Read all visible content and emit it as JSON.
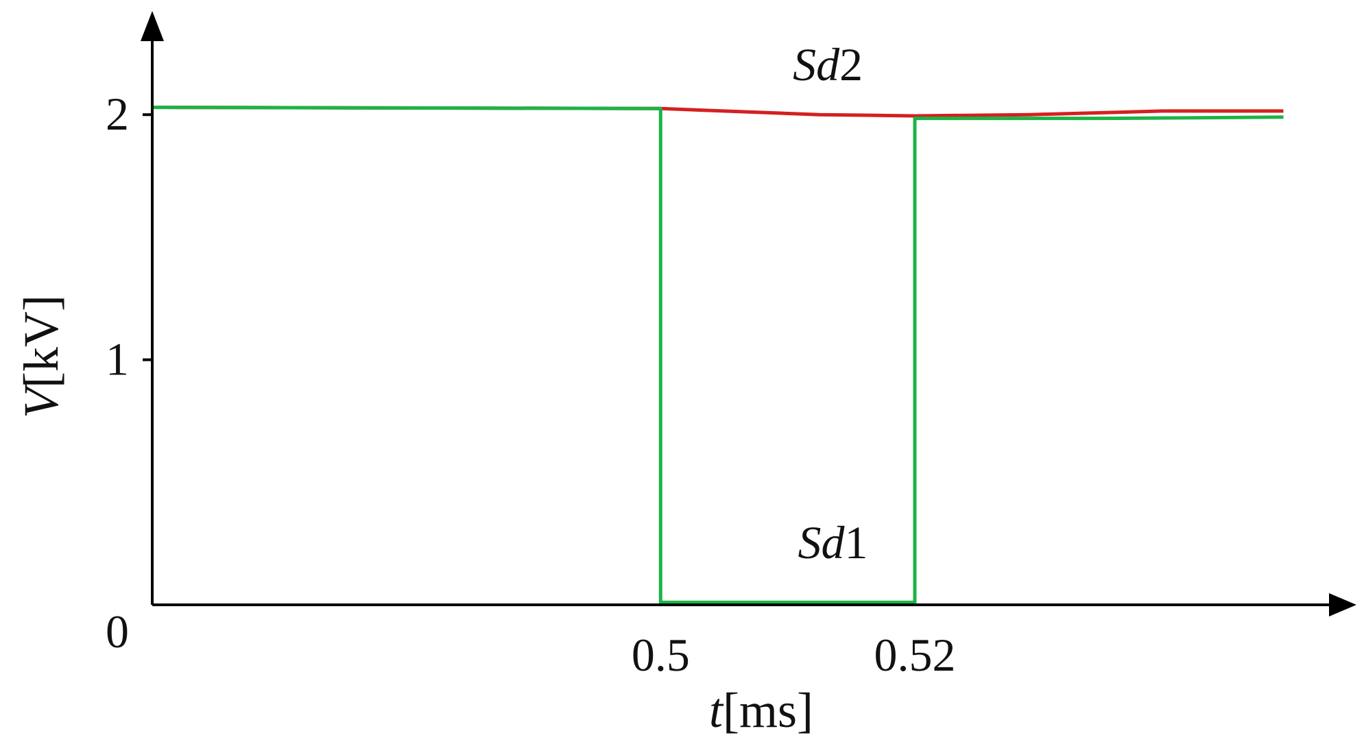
{
  "chart_data": {
    "type": "line",
    "xlabel": {
      "symbol": "t",
      "unit": "[ms]"
    },
    "ylabel": {
      "symbol": "V",
      "unit": "[kV]"
    },
    "x_ticks": [
      {
        "value": 0.5,
        "label": "0.5"
      },
      {
        "value": 0.52,
        "label": "0.52"
      }
    ],
    "y_ticks": [
      {
        "value": 0,
        "label": "0"
      },
      {
        "value": 1,
        "label": "1"
      },
      {
        "value": 2,
        "label": "2"
      }
    ],
    "xlim": [
      0.46,
      0.55
    ],
    "ylim": [
      0,
      2.3
    ],
    "grid": false,
    "legend": "none",
    "series": [
      {
        "color": "#d42020",
        "x": [
          0.46,
          0.5,
          0.5125,
          0.52,
          0.529,
          0.5395,
          0.549
        ],
        "y": [
          2.03,
          2.025,
          2.0,
          1.995,
          2.0,
          2.015,
          2.015
        ]
      },
      {
        "color": "#1db347",
        "x": [
          0.46,
          0.5,
          0.5,
          0.52,
          0.52,
          0.535,
          0.549
        ],
        "y": [
          2.03,
          2.025,
          0.01,
          0.01,
          1.985,
          1.985,
          1.99
        ]
      }
    ],
    "annotations": [
      {
        "text_main": "Sd",
        "text_sub": "2",
        "x": 0.5104,
        "y": 2.14
      },
      {
        "text_main": "Sd",
        "text_sub": "1",
        "x": 0.5108,
        "y": 0.19
      }
    ]
  }
}
